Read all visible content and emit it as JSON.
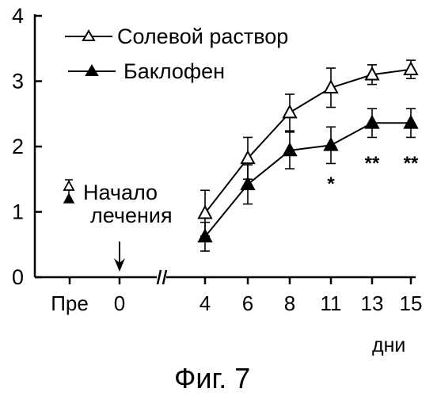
{
  "chart_data": {
    "type": "line",
    "categories": [
      "Пре",
      "0",
      "4",
      "6",
      "8",
      "11",
      "13",
      "15"
    ],
    "xunit": "дни",
    "ylim": [
      0,
      4
    ],
    "yticks": [
      "0",
      "1",
      "2",
      "3",
      "4"
    ],
    "axis_break_after": "0",
    "series": [
      {
        "name": "Солевой раствор",
        "marker": "open-triangle",
        "x": [
          "4",
          "6",
          "8",
          "11",
          "13",
          "15"
        ],
        "values": [
          0.98,
          1.82,
          2.52,
          2.9,
          3.1,
          3.18
        ],
        "error": [
          0.35,
          0.32,
          0.28,
          0.3,
          0.15,
          0.14
        ]
      },
      {
        "name": "Баклофен",
        "marker": "filled-triangle",
        "x": [
          "4",
          "6",
          "8",
          "11",
          "13",
          "15"
        ],
        "values": [
          0.62,
          1.42,
          1.94,
          2.02,
          2.36,
          2.36
        ],
        "error": [
          0.22,
          0.3,
          0.28,
          0.28,
          0.22,
          0.22
        ]
      }
    ],
    "significance": [
      {
        "x": "11",
        "label": "*"
      },
      {
        "x": "13",
        "label": "**"
      },
      {
        "x": "15",
        "label": "**"
      }
    ],
    "annotation": {
      "line1": "Начало",
      "line2": "лечения",
      "x": "0"
    },
    "caption": "Фиг. 7",
    "grid": false,
    "legend": "top-left"
  }
}
